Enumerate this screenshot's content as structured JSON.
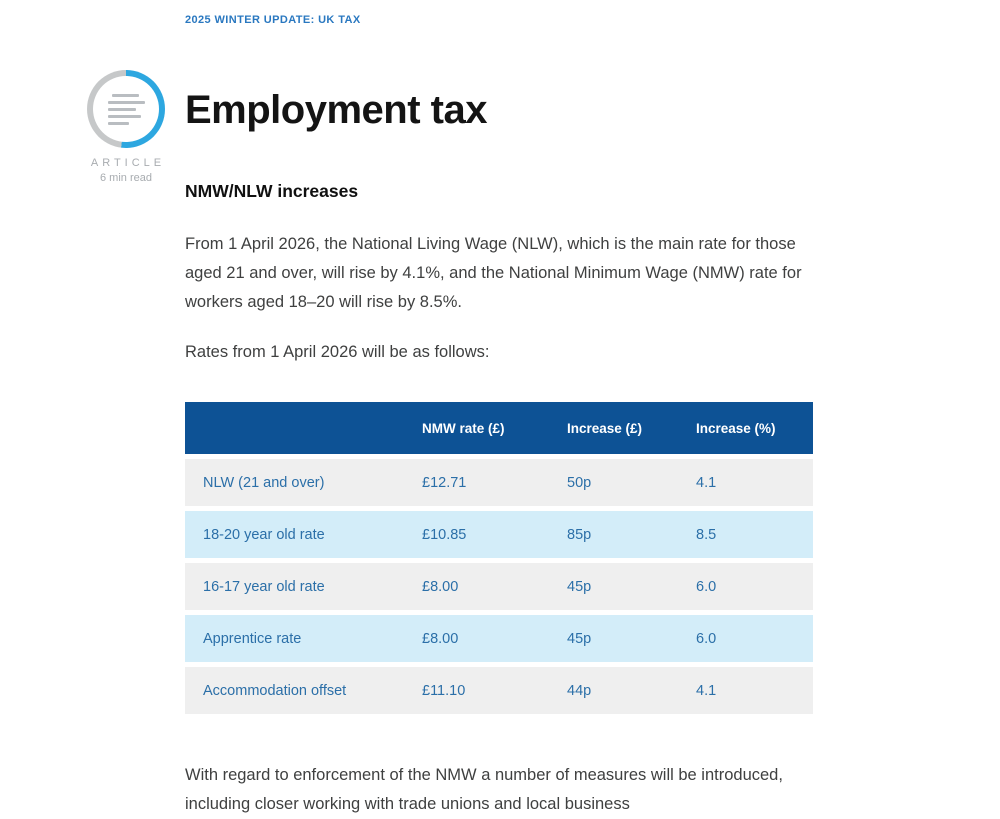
{
  "breadcrumb": {
    "label": "2025 WINTER UPDATE: UK TAX"
  },
  "article_meta": {
    "type_label": "ARTICLE",
    "read_time": "6 min read",
    "icon": "article-ring-icon"
  },
  "article": {
    "title": "Employment tax",
    "section_heading": "NMW/NLW increases",
    "intro_paragraph": "From 1 April 2026, the National Living Wage (NLW), which is the main rate for those aged 21 and over, will rise by 4.1%, and the National Minimum Wage (NMW) rate for workers aged 18–20 will rise by 8.5%.",
    "rates_intro": "Rates from 1 April 2026 will be as follows:",
    "closing_paragraph": "With regard to enforcement of the NMW a number of measures will be introduced, including closer working with trade unions and local business"
  },
  "rates_table": {
    "headers": {
      "col1": "",
      "col2": "NMW rate (£)",
      "col3": "Increase (£)",
      "col4": "Increase (%)"
    },
    "rows": [
      {
        "label": "NLW (21 and over)",
        "nmw_rate": "£12.71",
        "increase_amount": "50p",
        "increase_percent": "4.1"
      },
      {
        "label": "18-20 year old rate",
        "nmw_rate": "£10.85",
        "increase_amount": "85p",
        "increase_percent": "8.5"
      },
      {
        "label": "16-17 year old rate",
        "nmw_rate": "£8.00",
        "increase_amount": "45p",
        "increase_percent": "6.0"
      },
      {
        "label": "Apprentice rate",
        "nmw_rate": "£8.00",
        "increase_amount": "45p",
        "increase_percent": "6.0"
      },
      {
        "label": "Accommodation offset",
        "nmw_rate": "£11.10",
        "increase_amount": "44p",
        "increase_percent": "4.1"
      }
    ]
  },
  "colors": {
    "header_blue": "#0d5295",
    "row_gray": "#efefef",
    "row_light_blue": "#d3edf9",
    "table_text_blue": "#2b6fa8",
    "accent_ring_blue": "#2da7e0",
    "breadcrumb_blue": "#2a78c0"
  }
}
